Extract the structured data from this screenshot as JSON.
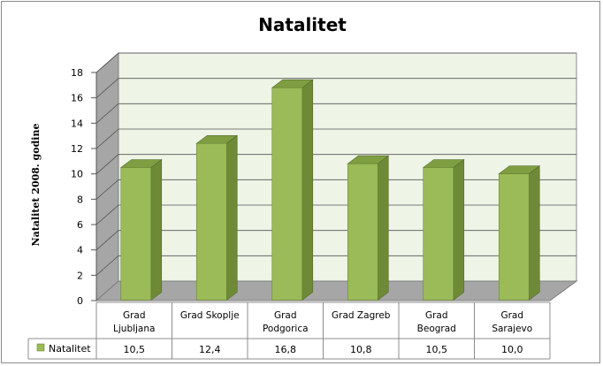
{
  "chart_data": {
    "type": "bar",
    "title": "Natalitet",
    "ylabel": "Natalitet 2008. godine",
    "xlabel": "",
    "ylim": [
      0,
      18
    ],
    "yticks": [
      0,
      2,
      4,
      6,
      8,
      10,
      12,
      14,
      16,
      18
    ],
    "grid": true,
    "categories": [
      "Grad Ljubljana",
      "Grad Skoplje",
      "Grad Podgorica",
      "Grad Zagreb",
      "Grad Beograd",
      "Grad Sarajevo"
    ],
    "series": [
      {
        "name": "Natalitet",
        "values": [
          10.5,
          12.4,
          16.8,
          10.8,
          10.5,
          10.0
        ],
        "value_labels": [
          "10,5",
          "12,4",
          "16,8",
          "10,8",
          "10,5",
          "10,0"
        ]
      }
    ],
    "data_table": true,
    "colors": {
      "bar_front": "#9bbb59",
      "bar_side": "#6e8a37",
      "bar_top": "#7f9e42",
      "back_wall": "#eef4e6",
      "side_wall": "#a6a6a6",
      "floor": "#a6a6a6",
      "gridline": "#555555"
    }
  }
}
